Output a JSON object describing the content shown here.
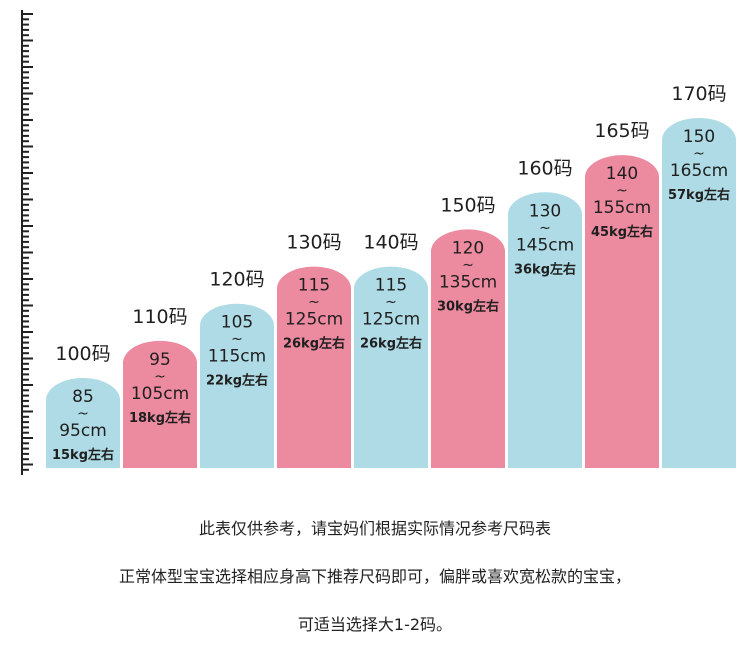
{
  "chart_data": {
    "type": "bar",
    "categories": [
      "100码",
      "110码",
      "120码",
      "130码",
      "140码",
      "150码",
      "160码",
      "165码",
      "170码"
    ],
    "series": [
      {
        "values": [
          95,
          105,
          115,
          125,
          125,
          135,
          145,
          155,
          165
        ]
      }
    ],
    "bar_labels": [
      {
        "size": "100码",
        "from": "85",
        "tilde": "~",
        "to": "95cm",
        "weight": "15kg左右",
        "color": "#aedbe5"
      },
      {
        "size": "110码",
        "from": "95",
        "tilde": "~",
        "to": "105cm",
        "weight": "18kg左右",
        "color": "#ec8aa0"
      },
      {
        "size": "120码",
        "from": "105",
        "tilde": "~",
        "to": "115cm",
        "weight": "22kg左右",
        "color": "#aedbe5"
      },
      {
        "size": "130码",
        "from": "115",
        "tilde": "~",
        "to": "125cm",
        "weight": "26kg左右",
        "color": "#ec8aa0"
      },
      {
        "size": "140码",
        "from": "115",
        "tilde": "~",
        "to": "125cm",
        "weight": "26kg左右",
        "color": "#aedbe5"
      },
      {
        "size": "150码",
        "from": "120",
        "tilde": "~",
        "to": "135cm",
        "weight": "30kg左右",
        "color": "#ec8aa0"
      },
      {
        "size": "160码",
        "from": "130",
        "tilde": "~",
        "to": "145cm",
        "weight": "36kg左右",
        "color": "#aedbe5"
      },
      {
        "size": "165码",
        "from": "140",
        "tilde": "~",
        "to": "155cm",
        "weight": "45kg左右",
        "color": "#ec8aa0"
      },
      {
        "size": "170码",
        "from": "150",
        "tilde": "~",
        "to": "165cm",
        "weight": "57kg左右",
        "color": "#aedbe5"
      }
    ],
    "colors": {
      "blue": "#aedbe5",
      "pink": "#ec8aa0",
      "ruler": "#222222"
    },
    "grid": false
  },
  "notes": {
    "line1": "此表仅供参考，请宝妈们根据实际情况参考尺码表",
    "line2": "正常体型宝宝选择相应身高下推荐尺码即可，偏胖或喜欢宽松款的宝宝，",
    "line3": "可适当选择大1-2码。"
  }
}
